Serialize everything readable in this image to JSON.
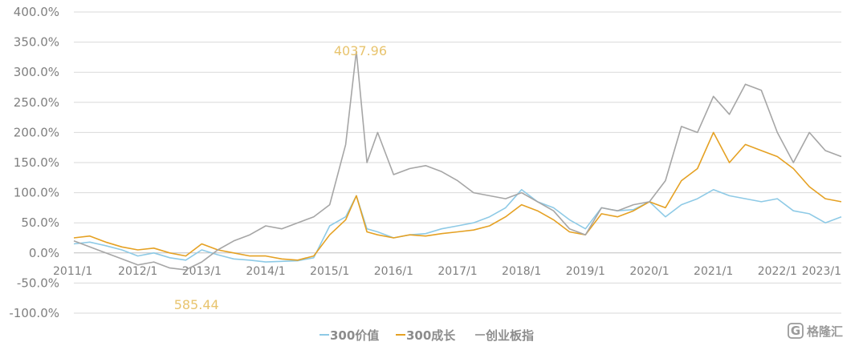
{
  "chart_data": {
    "type": "line",
    "title": "",
    "xlabel": "",
    "ylabel": "",
    "ylim": [
      -100,
      400
    ],
    "xlim": [
      "2011-01",
      "2023-01"
    ],
    "y_ticks": [
      "400.0%",
      "350.0%",
      "300.0%",
      "250.0%",
      "200.0%",
      "150.0%",
      "100.0%",
      "50.0%",
      "0.0%",
      "-50.0%",
      "-100.0%"
    ],
    "x_ticks": [
      "2011/1",
      "2012/1",
      "2013/1",
      "2014/1",
      "2015/1",
      "2016/1",
      "2017/1",
      "2018/1",
      "2019/1",
      "2020/1",
      "2021/1",
      "2022/1",
      "2023/1"
    ],
    "grid": true,
    "legend_position": "bottom",
    "annotations": [
      {
        "text": "4037.96",
        "x": "2015-06",
        "y": 335
      },
      {
        "text": "585.44",
        "x": "2012-12",
        "y": -28
      }
    ],
    "series": [
      {
        "name": "300价值",
        "color": "#8ecae6",
        "x": [
          "2011-01",
          "2011-04",
          "2011-07",
          "2011-10",
          "2012-01",
          "2012-04",
          "2012-07",
          "2012-10",
          "2013-01",
          "2013-04",
          "2013-07",
          "2013-10",
          "2014-01",
          "2014-04",
          "2014-07",
          "2014-10",
          "2015-01",
          "2015-04",
          "2015-06",
          "2015-08",
          "2015-10",
          "2016-01",
          "2016-04",
          "2016-07",
          "2016-10",
          "2017-01",
          "2017-04",
          "2017-07",
          "2017-10",
          "2018-01",
          "2018-04",
          "2018-07",
          "2018-10",
          "2019-01",
          "2019-04",
          "2019-07",
          "2019-10",
          "2020-01",
          "2020-04",
          "2020-07",
          "2020-10",
          "2021-01",
          "2021-04",
          "2021-07",
          "2021-10",
          "2022-01",
          "2022-04",
          "2022-07",
          "2022-10",
          "2023-01"
        ],
        "values": [
          15,
          18,
          12,
          5,
          -5,
          0,
          -8,
          -12,
          5,
          -3,
          -10,
          -12,
          -15,
          -14,
          -13,
          -8,
          45,
          60,
          95,
          40,
          35,
          25,
          30,
          32,
          40,
          45,
          50,
          60,
          75,
          105,
          85,
          75,
          55,
          40,
          75,
          70,
          72,
          85,
          60,
          80,
          90,
          105,
          95,
          90,
          85,
          90,
          70,
          65,
          50,
          60
        ]
      },
      {
        "name": "300成长",
        "color": "#e5a123",
        "x": [
          "2011-01",
          "2011-04",
          "2011-07",
          "2011-10",
          "2012-01",
          "2012-04",
          "2012-07",
          "2012-10",
          "2013-01",
          "2013-04",
          "2013-07",
          "2013-10",
          "2014-01",
          "2014-04",
          "2014-07",
          "2014-10",
          "2015-01",
          "2015-04",
          "2015-06",
          "2015-08",
          "2015-10",
          "2016-01",
          "2016-04",
          "2016-07",
          "2016-10",
          "2017-01",
          "2017-04",
          "2017-07",
          "2017-10",
          "2018-01",
          "2018-04",
          "2018-07",
          "2018-10",
          "2019-01",
          "2019-04",
          "2019-07",
          "2019-10",
          "2020-01",
          "2020-04",
          "2020-07",
          "2020-10",
          "2021-01",
          "2021-04",
          "2021-07",
          "2021-10",
          "2022-01",
          "2022-04",
          "2022-07",
          "2022-10",
          "2023-01"
        ],
        "values": [
          25,
          28,
          18,
          10,
          5,
          8,
          0,
          -5,
          15,
          5,
          0,
          -5,
          -5,
          -10,
          -12,
          -5,
          30,
          55,
          95,
          35,
          30,
          25,
          30,
          28,
          32,
          35,
          38,
          45,
          60,
          80,
          70,
          55,
          35,
          30,
          65,
          60,
          70,
          85,
          75,
          120,
          140,
          200,
          150,
          180,
          170,
          160,
          140,
          110,
          90,
          85
        ]
      },
      {
        "name": "创业板指",
        "color": "#a6a6a6",
        "x": [
          "2011-01",
          "2011-04",
          "2011-07",
          "2011-10",
          "2012-01",
          "2012-04",
          "2012-07",
          "2012-10",
          "2013-01",
          "2013-04",
          "2013-07",
          "2013-10",
          "2014-01",
          "2014-04",
          "2014-07",
          "2014-10",
          "2015-01",
          "2015-04",
          "2015-06",
          "2015-08",
          "2015-10",
          "2016-01",
          "2016-04",
          "2016-07",
          "2016-10",
          "2017-01",
          "2017-04",
          "2017-07",
          "2017-10",
          "2018-01",
          "2018-04",
          "2018-07",
          "2018-10",
          "2019-01",
          "2019-04",
          "2019-07",
          "2019-10",
          "2020-01",
          "2020-04",
          "2020-07",
          "2020-10",
          "2021-01",
          "2021-04",
          "2021-07",
          "2021-10",
          "2022-01",
          "2022-04",
          "2022-07",
          "2022-10",
          "2023-01"
        ],
        "values": [
          20,
          10,
          0,
          -10,
          -20,
          -15,
          -25,
          -28,
          -15,
          5,
          20,
          30,
          45,
          40,
          50,
          60,
          80,
          180,
          335,
          150,
          200,
          130,
          140,
          145,
          135,
          120,
          100,
          95,
          90,
          100,
          85,
          70,
          40,
          30,
          75,
          70,
          80,
          85,
          120,
          210,
          200,
          260,
          230,
          280,
          270,
          200,
          150,
          200,
          170,
          160
        ]
      }
    ]
  },
  "watermark": {
    "text": "格隆汇",
    "glyph": "G",
    "icon": "gelonghui-logo-icon"
  }
}
